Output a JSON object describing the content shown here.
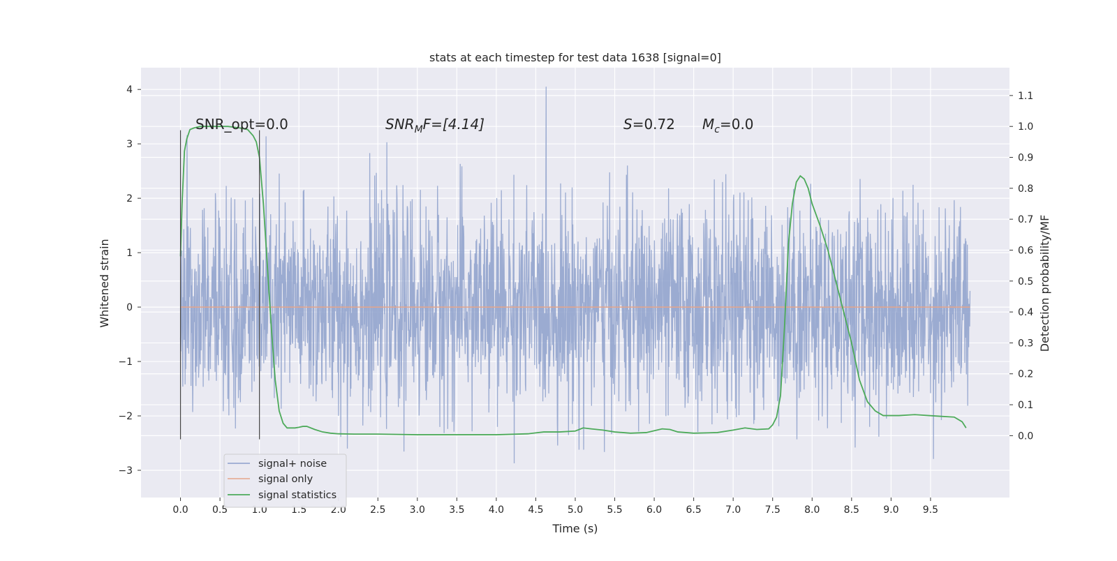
{
  "chart_data": {
    "type": "line",
    "title": "stats at each timestep for test data 1638 [signal=0]",
    "xlabel": "Time (s)",
    "ylabel_left": "Whitened strain",
    "ylabel_right": "Detection probability/MF",
    "xlim": [
      -0.5,
      10.5
    ],
    "ylim_left": [
      -3.5,
      4.4
    ],
    "ylim_right": [
      -0.2,
      1.19
    ],
    "x_ticks": [
      "0.0",
      "0.5",
      "1.0",
      "1.5",
      "2.0",
      "2.5",
      "3.0",
      "3.5",
      "4.0",
      "4.5",
      "5.0",
      "5.5",
      "6.0",
      "6.5",
      "7.0",
      "7.5",
      "8.0",
      "8.5",
      "9.0",
      "9.5"
    ],
    "y_ticks_left": [
      "4",
      "3",
      "2",
      "1",
      "0",
      "−1",
      "−2",
      "−3"
    ],
    "y_ticks_right": [
      "1.1",
      "1.0",
      "0.9",
      "0.8",
      "0.7",
      "0.6",
      "0.5",
      "0.4",
      "0.3",
      "0.2",
      "0.1",
      "0.0"
    ],
    "grid": true,
    "legend_position": "lower-left",
    "annotations": {
      "snr_opt": "SNR_opt=0.0",
      "snr_mf_base": "SNR",
      "snr_mf_sub": "M",
      "snr_mf_tail": "F=[4.14]",
      "s_var": "S",
      "s_val": "=0.72",
      "mc_var": "M",
      "mc_sub": "c",
      "mc_val": "=0.0"
    },
    "vertical_markers": [
      0.0,
      1.0
    ],
    "series": [
      {
        "name": "signal+ noise",
        "color": "#8da0cb",
        "axis": "left",
        "kind": "noise",
        "x_range": [
          0.0,
          10.0
        ],
        "approx_range": [
          -3.2,
          4.05
        ]
      },
      {
        "name": "signal only",
        "color": "#e5a58a",
        "axis": "left",
        "x": [
          0.0,
          10.0
        ],
        "y": [
          0.0,
          0.0
        ]
      },
      {
        "name": "signal statistics",
        "color": "#4daa5a",
        "axis": "right",
        "x": [
          0.0,
          0.02,
          0.05,
          0.08,
          0.12,
          0.17,
          0.25,
          0.4,
          0.6,
          0.75,
          0.85,
          0.92,
          0.96,
          1.0,
          1.05,
          1.1,
          1.15,
          1.2,
          1.25,
          1.3,
          1.35,
          1.4,
          1.45,
          1.5,
          1.55,
          1.6,
          1.7,
          1.8,
          1.9,
          2.0,
          2.2,
          2.5,
          3.0,
          3.5,
          4.0,
          4.4,
          4.6,
          4.8,
          5.0,
          5.1,
          5.2,
          5.35,
          5.5,
          5.7,
          5.9,
          6.1,
          6.2,
          6.3,
          6.5,
          6.8,
          7.0,
          7.15,
          7.3,
          7.45,
          7.5,
          7.55,
          7.6,
          7.65,
          7.7,
          7.75,
          7.8,
          7.85,
          7.9,
          7.95,
          8.0,
          8.1,
          8.2,
          8.3,
          8.4,
          8.5,
          8.6,
          8.7,
          8.8,
          8.9,
          9.0,
          9.1,
          9.3,
          9.6,
          9.8,
          9.9,
          9.95
        ],
        "y": [
          0.58,
          0.75,
          0.92,
          0.96,
          0.99,
          0.995,
          1.0,
          1.0,
          1.0,
          0.995,
          0.99,
          0.97,
          0.95,
          0.9,
          0.75,
          0.55,
          0.35,
          0.18,
          0.08,
          0.04,
          0.025,
          0.025,
          0.025,
          0.027,
          0.03,
          0.03,
          0.02,
          0.012,
          0.008,
          0.006,
          0.005,
          0.005,
          0.003,
          0.003,
          0.003,
          0.006,
          0.012,
          0.012,
          0.015,
          0.025,
          0.022,
          0.018,
          0.012,
          0.008,
          0.01,
          0.022,
          0.02,
          0.012,
          0.008,
          0.01,
          0.018,
          0.025,
          0.02,
          0.022,
          0.035,
          0.06,
          0.13,
          0.35,
          0.62,
          0.75,
          0.82,
          0.84,
          0.83,
          0.8,
          0.75,
          0.68,
          0.6,
          0.5,
          0.4,
          0.3,
          0.18,
          0.11,
          0.08,
          0.065,
          0.065,
          0.065,
          0.068,
          0.063,
          0.06,
          0.045,
          0.025
        ]
      }
    ]
  }
}
